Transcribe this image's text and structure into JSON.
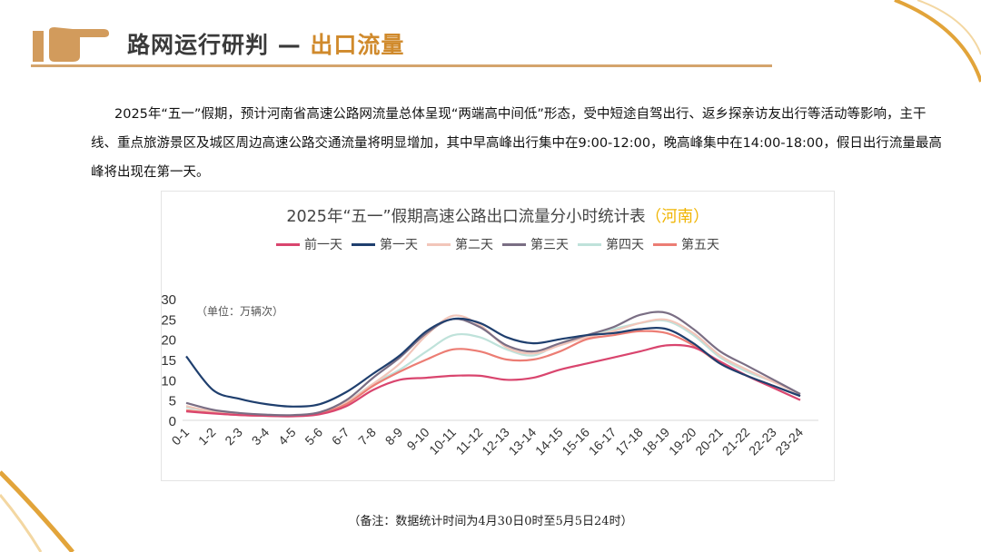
{
  "header": {
    "title_main": "路网运行研判 — ",
    "title_accent": "出口流量",
    "icon": "pointing-hand-icon",
    "accent_color": "#d08a2c"
  },
  "intro": "2025年“五一”假期，预计河南省高速公路网流量总体呈现“两端高中间低”形态，受中短途自驾出行、返乡探亲访友出行等活动等影响，主干线、重点旅游景区及城区周边高速公路交通流量将明显增加，其中早高峰出行集中在9:00-12:00，晚高峰集中在14:00-18:00，假日出行流量最高峰将出现在第一天。",
  "chart_data": {
    "type": "line",
    "title": "2025年“五一”假期高速公路出口流量分小时统计表",
    "title_region": "（河南）",
    "unit_label": "（单位：万辆次）",
    "ylim": [
      0,
      30
    ],
    "yticks": [
      "0",
      "5",
      "10",
      "15",
      "20",
      "25",
      "30"
    ],
    "grid": false,
    "legend": "top",
    "categories": [
      "0-1",
      "1-2",
      "2-3",
      "3-4",
      "4-5",
      "5-6",
      "6-7",
      "7-8",
      "8-9",
      "9-10",
      "10-11",
      "11-12",
      "12-13",
      "13-14",
      "14-15",
      "15-16",
      "16-17",
      "17-18",
      "18-19",
      "19-20",
      "20-21",
      "21-22",
      "22-23",
      "23-24"
    ],
    "series": [
      {
        "name": "前一天",
        "color": "#d9456e",
        "values": [
          2.2,
          1.7,
          1.3,
          1.1,
          1.0,
          1.5,
          3.5,
          7.5,
          10,
          10.5,
          11,
          11,
          10,
          10.5,
          12.5,
          14,
          15.5,
          17,
          18.5,
          18,
          14.5,
          11,
          8,
          5
        ]
      },
      {
        "name": "第一天",
        "color": "#1f3f6e",
        "values": [
          15.8,
          7.5,
          5.3,
          4,
          3.4,
          4,
          7,
          11.5,
          16,
          22,
          25,
          24,
          20.5,
          19,
          20,
          21,
          21.5,
          22.5,
          22.5,
          19,
          14,
          11,
          8.5,
          6
        ]
      },
      {
        "name": "第二天",
        "color": "#f2c6ba",
        "values": [
          3.5,
          2.2,
          1.6,
          1.3,
          1.2,
          1.8,
          4.5,
          9,
          14,
          21,
          25.8,
          23.5,
          18,
          16.5,
          18.5,
          20.5,
          22,
          24,
          24.8,
          21.5,
          16,
          12.5,
          9.5,
          6.5
        ]
      },
      {
        "name": "第三天",
        "color": "#7a6e84",
        "values": [
          4.3,
          2.6,
          1.8,
          1.4,
          1.3,
          2,
          5,
          10.5,
          15.5,
          21.5,
          25,
          23,
          18.5,
          17,
          19,
          21,
          23,
          26,
          26.5,
          22.5,
          17,
          13.5,
          10,
          6.5
        ]
      },
      {
        "name": "第四天",
        "color": "#bfe2da",
        "values": [
          3.2,
          2.2,
          1.6,
          1.3,
          1.2,
          1.8,
          4.5,
          9,
          12.5,
          17,
          21,
          20.5,
          17.5,
          16,
          19,
          21,
          22.5,
          24,
          24.5,
          21,
          15.5,
          12,
          9.5,
          6.5
        ]
      },
      {
        "name": "第五天",
        "color": "#ec7d74",
        "values": [
          2.5,
          1.8,
          1.3,
          1.1,
          1.1,
          1.7,
          4,
          8.5,
          12,
          15,
          17.5,
          17,
          15,
          15,
          17,
          20,
          21,
          22,
          21.5,
          18.5,
          14,
          11,
          8.5,
          6
        ]
      }
    ]
  },
  "footnote": "（备注：数据统计时间为4月30日0时至5月5日24时）"
}
